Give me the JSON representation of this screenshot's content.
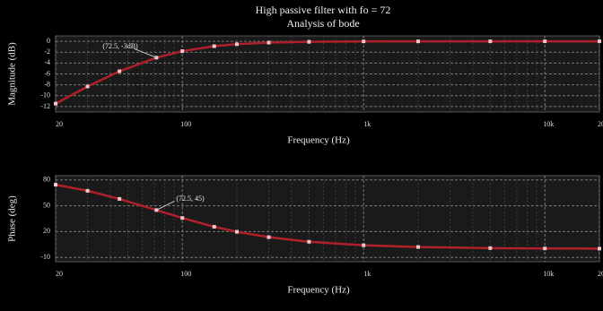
{
  "chart_data": [
    {
      "type": "line",
      "title": "High passive filter with fo = 72",
      "subtitle": "Analysis of bode",
      "x_label": "Frequency (Hz)",
      "y_label": "Magnitude (dB)",
      "log_x": true,
      "grid": true,
      "x": [
        20,
        30,
        45,
        72,
        100,
        150,
        200,
        300,
        500,
        1000,
        2000,
        5000,
        10000,
        20000
      ],
      "series": [
        {
          "color": "#b0202a",
          "values": [
            -11.45,
            -8.3,
            -5.51,
            -3.01,
            -1.81,
            -0.9,
            -0.53,
            -0.24,
            -0.09,
            -0.02,
            -0.01,
            0,
            0,
            0
          ]
        }
      ],
      "xlim": [
        20,
        20000
      ],
      "xticks": [
        20,
        100,
        {
          "value": 1000,
          "label": "1k"
        },
        {
          "value": 10000,
          "label": "10k"
        },
        {
          "value": 20000,
          "label": "20k"
        }
      ],
      "ylim": [
        -13,
        1
      ],
      "yticks": [
        0,
        -2,
        -4,
        -6,
        -8,
        -10,
        -12
      ],
      "annotation": {
        "text": "(72.5, -3dB)",
        "x": 72,
        "y": -3.01
      }
    },
    {
      "type": "line",
      "x_label": "Frequency (Hz)",
      "y_label": "Phase (deg)",
      "log_x": true,
      "grid": true,
      "x": [
        20,
        30,
        45,
        72,
        100,
        150,
        200,
        300,
        500,
        1000,
        2000,
        5000,
        10000,
        20000
      ],
      "series": [
        {
          "color": "#b0202a",
          "values": [
            74.5,
            67.4,
            58,
            45,
            35.8,
            25.6,
            19.8,
            13.5,
            8.2,
            4.1,
            2.1,
            0.8,
            0.4,
            0.2
          ]
        }
      ],
      "xlim": [
        20,
        20000
      ],
      "xticks": [
        20,
        100,
        {
          "value": 1000,
          "label": "1k"
        },
        {
          "value": 10000,
          "label": "10k"
        },
        {
          "value": 20000,
          "label": "20k"
        }
      ],
      "ylim": [
        -15,
        85
      ],
      "yticks": [
        -10,
        20,
        50,
        80
      ],
      "annotation": {
        "text": "(72.5, 45)",
        "x": 72,
        "y": 45
      }
    }
  ]
}
